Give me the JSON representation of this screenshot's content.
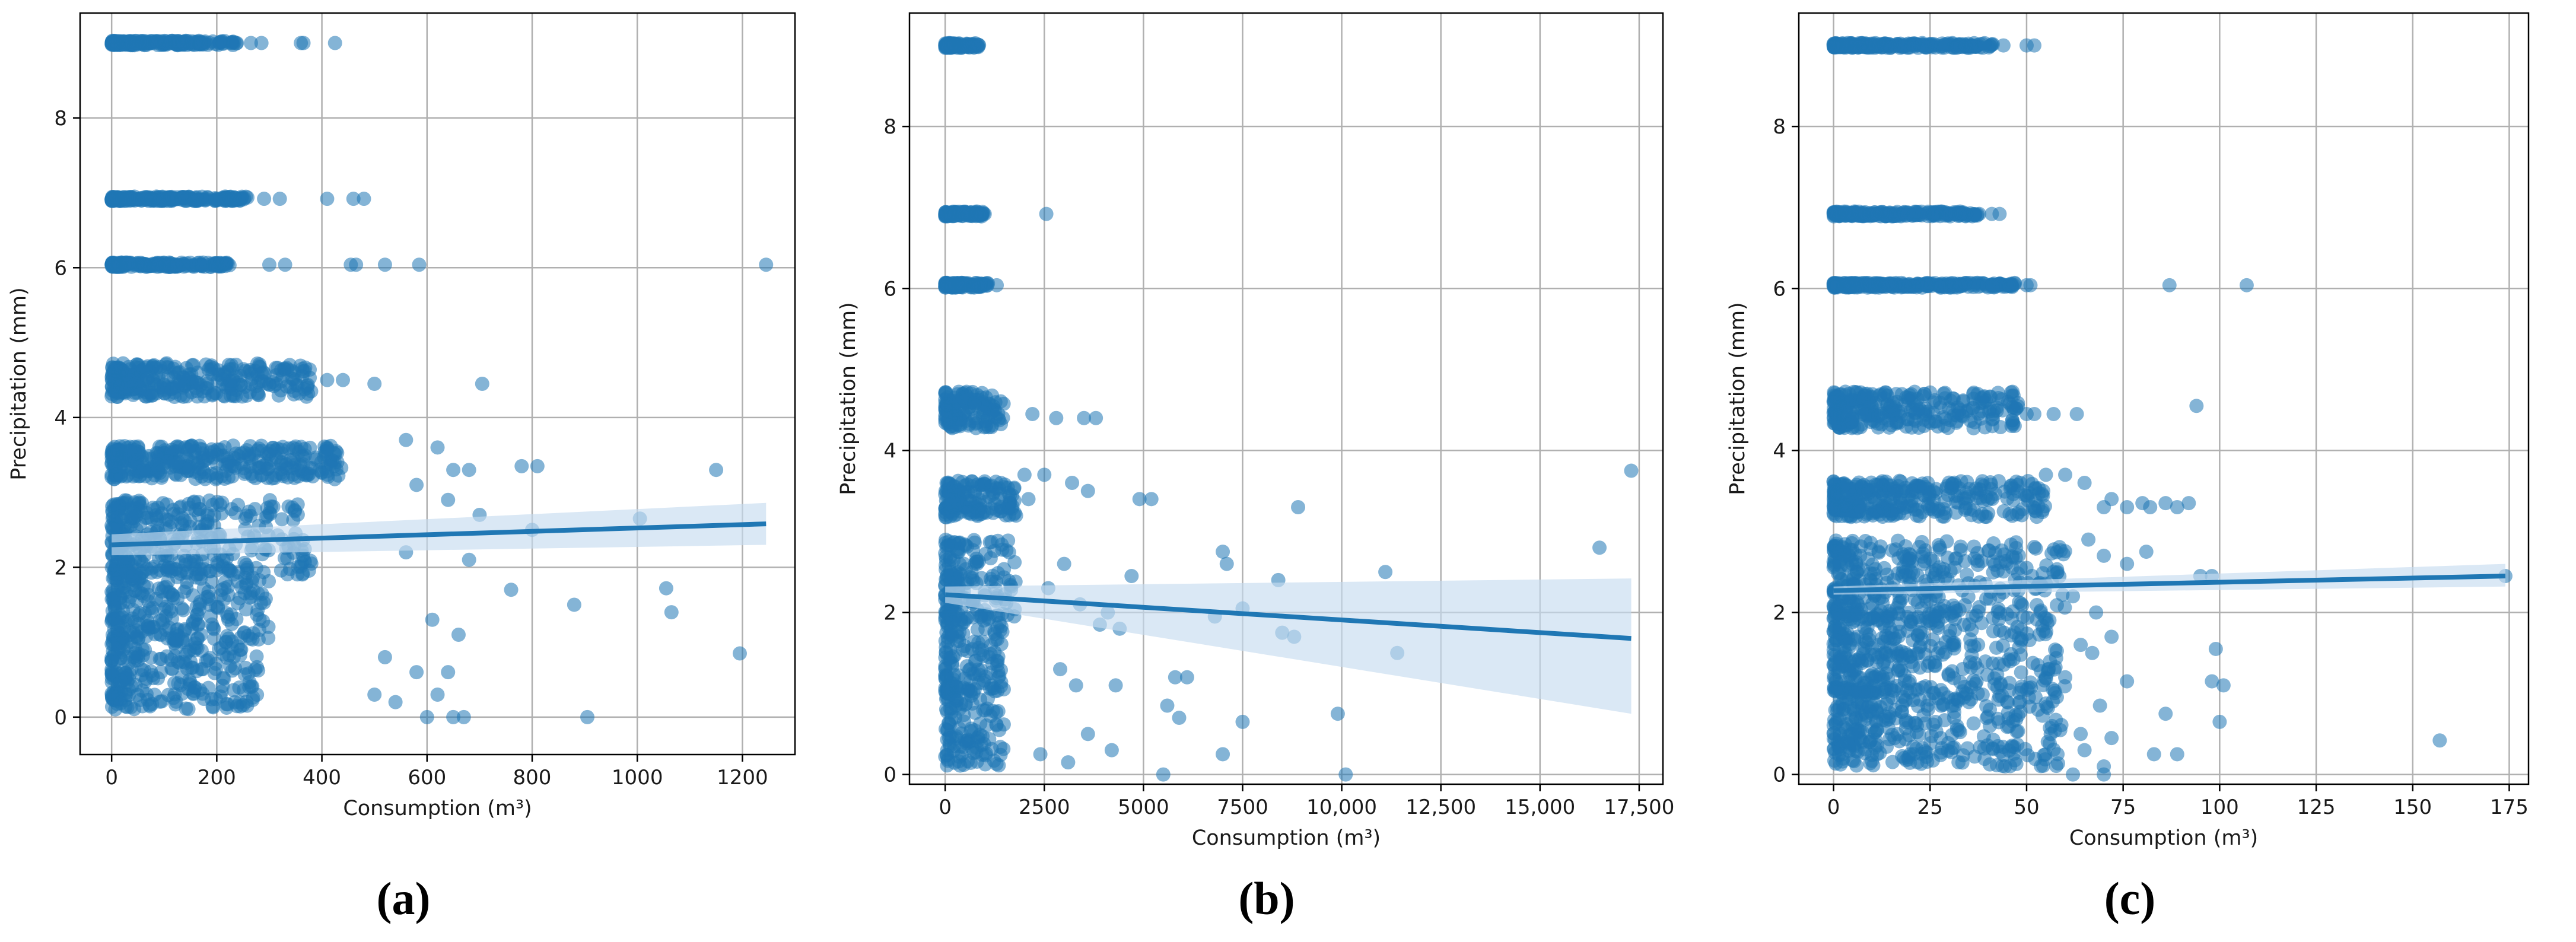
{
  "colors": {
    "point": "#1f77b4",
    "regression_line": "#1f77b4",
    "confidence_band": "#c6dbef",
    "grid": "#b0b0b0",
    "axis": "#000000"
  },
  "chart_data": [
    {
      "panel": "a",
      "caption": "(a)",
      "type": "scatter",
      "xlabel": "Consumption (m³)",
      "ylabel": "Precipitation (mm)",
      "xlim": [
        -60,
        1300
      ],
      "ylim": [
        -0.5,
        9.4
      ],
      "xticks": [
        0,
        200,
        400,
        600,
        800,
        1000,
        1200
      ],
      "xtick_labels": [
        "0",
        "200",
        "400",
        "600",
        "800",
        "1000",
        "1200"
      ],
      "yticks": [
        0,
        2,
        4,
        6,
        8
      ],
      "ytick_labels": [
        "0",
        "2",
        "4",
        "6",
        "8"
      ],
      "grid": true,
      "bands": [
        {
          "y": 9.0,
          "x_max": 240
        },
        {
          "y": 6.92,
          "x_max": 260
        },
        {
          "y": 6.04,
          "x_max": 230
        },
        {
          "y": 4.5,
          "x_max": 380
        },
        {
          "y": 3.4,
          "x_max": 440
        },
        {
          "y": 2.4,
          "x_max": 380
        },
        {
          "y": 1.5,
          "x_max": 300
        },
        {
          "y": 0.6,
          "x_max": 280
        }
      ],
      "outliers": [
        [
          265,
          9.0
        ],
        [
          285,
          9.0
        ],
        [
          360,
          9.0
        ],
        [
          365,
          9.0
        ],
        [
          425,
          9.0
        ],
        [
          290,
          6.92
        ],
        [
          320,
          6.92
        ],
        [
          410,
          6.92
        ],
        [
          460,
          6.92
        ],
        [
          480,
          6.92
        ],
        [
          300,
          6.04
        ],
        [
          330,
          6.04
        ],
        [
          455,
          6.04
        ],
        [
          465,
          6.04
        ],
        [
          520,
          6.04
        ],
        [
          585,
          6.04
        ],
        [
          1245,
          6.04
        ],
        [
          410,
          4.5
        ],
        [
          440,
          4.5
        ],
        [
          500,
          4.45
        ],
        [
          705,
          4.45
        ],
        [
          560,
          3.7
        ],
        [
          620,
          3.6
        ],
        [
          650,
          3.3
        ],
        [
          680,
          3.3
        ],
        [
          780,
          3.35
        ],
        [
          810,
          3.35
        ],
        [
          1150,
          3.3
        ],
        [
          580,
          3.1
        ],
        [
          640,
          2.9
        ],
        [
          700,
          2.7
        ],
        [
          1005,
          2.65
        ],
        [
          800,
          2.5
        ],
        [
          560,
          2.2
        ],
        [
          680,
          2.1
        ],
        [
          760,
          1.7
        ],
        [
          1055,
          1.72
        ],
        [
          1065,
          1.4
        ],
        [
          880,
          1.5
        ],
        [
          610,
          1.3
        ],
        [
          660,
          1.1
        ],
        [
          520,
          0.8
        ],
        [
          580,
          0.6
        ],
        [
          640,
          0.6
        ],
        [
          1195,
          0.85
        ],
        [
          500,
          0.3
        ],
        [
          600,
          0.0
        ],
        [
          650,
          0.0
        ],
        [
          670,
          0.0
        ],
        [
          905,
          0.0
        ],
        [
          540,
          0.2
        ],
        [
          620,
          0.3
        ]
      ],
      "regression": {
        "x": [
          0,
          1245
        ],
        "y": [
          2.3,
          2.58
        ],
        "band_lo": [
          2.16,
          2.3
        ],
        "band_hi": [
          2.44,
          2.86
        ]
      }
    },
    {
      "panel": "b",
      "caption": "(b)",
      "type": "scatter",
      "xlabel": "Consumption (m³)",
      "ylabel": "Precipitation (mm)",
      "xlim": [
        -900,
        18100
      ],
      "ylim": [
        -0.12,
        9.4
      ],
      "xticks": [
        0,
        2500,
        5000,
        7500,
        10000,
        12500,
        15000,
        17500
      ],
      "xtick_labels": [
        "0",
        "2500",
        "5000",
        "7500",
        "10,000",
        "12,500",
        "15,000",
        "17,500"
      ],
      "yticks": [
        0,
        2,
        4,
        6,
        8
      ],
      "ytick_labels": [
        "0",
        "2",
        "4",
        "6",
        "8"
      ],
      "grid": true,
      "bands": [
        {
          "y": 9.0,
          "x_max": 900
        },
        {
          "y": 6.92,
          "x_max": 1000
        },
        {
          "y": 6.04,
          "x_max": 1100
        },
        {
          "y": 4.5,
          "x_max": 1500
        },
        {
          "y": 3.4,
          "x_max": 1800
        },
        {
          "y": 2.4,
          "x_max": 1800
        },
        {
          "y": 1.5,
          "x_max": 1500
        },
        {
          "y": 0.6,
          "x_max": 1500
        }
      ],
      "outliers": [
        [
          2550,
          6.92
        ],
        [
          1300,
          6.04
        ],
        [
          2200,
          4.45
        ],
        [
          2800,
          4.4
        ],
        [
          3500,
          4.4
        ],
        [
          3800,
          4.4
        ],
        [
          2000,
          3.7
        ],
        [
          2500,
          3.7
        ],
        [
          3200,
          3.6
        ],
        [
          3600,
          3.5
        ],
        [
          4900,
          3.4
        ],
        [
          5200,
          3.4
        ],
        [
          2100,
          3.4
        ],
        [
          8900,
          3.3
        ],
        [
          17300,
          3.75
        ],
        [
          16500,
          2.8
        ],
        [
          7000,
          2.75
        ],
        [
          7100,
          2.6
        ],
        [
          3000,
          2.6
        ],
        [
          8400,
          2.4
        ],
        [
          11100,
          2.5
        ],
        [
          4700,
          2.45
        ],
        [
          2600,
          2.3
        ],
        [
          3400,
          2.1
        ],
        [
          4100,
          2.0
        ],
        [
          7500,
          2.05
        ],
        [
          6800,
          1.95
        ],
        [
          3900,
          1.85
        ],
        [
          4400,
          1.8
        ],
        [
          8500,
          1.75
        ],
        [
          8800,
          1.7
        ],
        [
          11400,
          1.5
        ],
        [
          2900,
          1.3
        ],
        [
          3300,
          1.1
        ],
        [
          4300,
          1.1
        ],
        [
          5800,
          1.2
        ],
        [
          6100,
          1.2
        ],
        [
          5600,
          0.85
        ],
        [
          5900,
          0.7
        ],
        [
          7500,
          0.65
        ],
        [
          9900,
          0.75
        ],
        [
          3600,
          0.5
        ],
        [
          4200,
          0.3
        ],
        [
          7000,
          0.25
        ],
        [
          2400,
          0.25
        ],
        [
          3100,
          0.15
        ],
        [
          5500,
          0.0
        ],
        [
          10100,
          0.0
        ]
      ],
      "regression": {
        "x": [
          0,
          17300
        ],
        "y": [
          2.22,
          1.68
        ],
        "band_lo": [
          2.12,
          0.75
        ],
        "band_hi": [
          2.32,
          2.42
        ]
      }
    },
    {
      "panel": "c",
      "caption": "(c)",
      "type": "scatter",
      "xlabel": "Consumption (m³)",
      "ylabel": "Precipitation (mm)",
      "xlim": [
        -9,
        180
      ],
      "ylim": [
        -0.12,
        9.4
      ],
      "xticks": [
        0,
        25,
        50,
        75,
        100,
        125,
        150,
        175
      ],
      "xtick_labels": [
        "0",
        "25",
        "50",
        "75",
        "100",
        "125",
        "150",
        "175"
      ],
      "yticks": [
        0,
        2,
        4,
        6,
        8
      ],
      "ytick_labels": [
        "0",
        "2",
        "4",
        "6",
        "8"
      ],
      "grid": true,
      "bands": [
        {
          "y": 9.0,
          "x_max": 42
        },
        {
          "y": 6.92,
          "x_max": 38
        },
        {
          "y": 6.04,
          "x_max": 47
        },
        {
          "y": 4.5,
          "x_max": 48
        },
        {
          "y": 3.4,
          "x_max": 55
        },
        {
          "y": 2.4,
          "x_max": 60
        },
        {
          "y": 1.5,
          "x_max": 58
        },
        {
          "y": 0.6,
          "x_max": 60
        }
      ],
      "outliers": [
        [
          44,
          9.0
        ],
        [
          50,
          9.0
        ],
        [
          52,
          9.0
        ],
        [
          41,
          6.92
        ],
        [
          43,
          6.92
        ],
        [
          50,
          6.04
        ],
        [
          51,
          6.04
        ],
        [
          87,
          6.04
        ],
        [
          107,
          6.04
        ],
        [
          50,
          4.45
        ],
        [
          52,
          4.45
        ],
        [
          57,
          4.45
        ],
        [
          63,
          4.45
        ],
        [
          94,
          4.55
        ],
        [
          55,
          3.7
        ],
        [
          60,
          3.7
        ],
        [
          65,
          3.6
        ],
        [
          70,
          3.3
        ],
        [
          72,
          3.4
        ],
        [
          76,
          3.3
        ],
        [
          80,
          3.35
        ],
        [
          82,
          3.3
        ],
        [
          86,
          3.35
        ],
        [
          89,
          3.3
        ],
        [
          92,
          3.35
        ],
        [
          66,
          2.9
        ],
        [
          70,
          2.7
        ],
        [
          76,
          2.6
        ],
        [
          81,
          2.75
        ],
        [
          95,
          2.45
        ],
        [
          98,
          2.45
        ],
        [
          62,
          2.2
        ],
        [
          68,
          2.0
        ],
        [
          72,
          1.7
        ],
        [
          64,
          1.6
        ],
        [
          67,
          1.5
        ],
        [
          99,
          1.55
        ],
        [
          101,
          1.1
        ],
        [
          98,
          1.15
        ],
        [
          76,
          1.15
        ],
        [
          60,
          1.2
        ],
        [
          69,
          0.85
        ],
        [
          86,
          0.75
        ],
        [
          100,
          0.65
        ],
        [
          64,
          0.5
        ],
        [
          72,
          0.45
        ],
        [
          58,
          0.25
        ],
        [
          65,
          0.3
        ],
        [
          70,
          0.1
        ],
        [
          83,
          0.25
        ],
        [
          89,
          0.25
        ],
        [
          157,
          0.42
        ],
        [
          62,
          0.0
        ],
        [
          70,
          0.0
        ],
        [
          174,
          2.45
        ]
      ],
      "regression": {
        "x": [
          0,
          174
        ],
        "y": [
          2.27,
          2.45
        ],
        "band_lo": [
          2.22,
          2.32
        ],
        "band_hi": [
          2.32,
          2.6
        ]
      }
    }
  ]
}
